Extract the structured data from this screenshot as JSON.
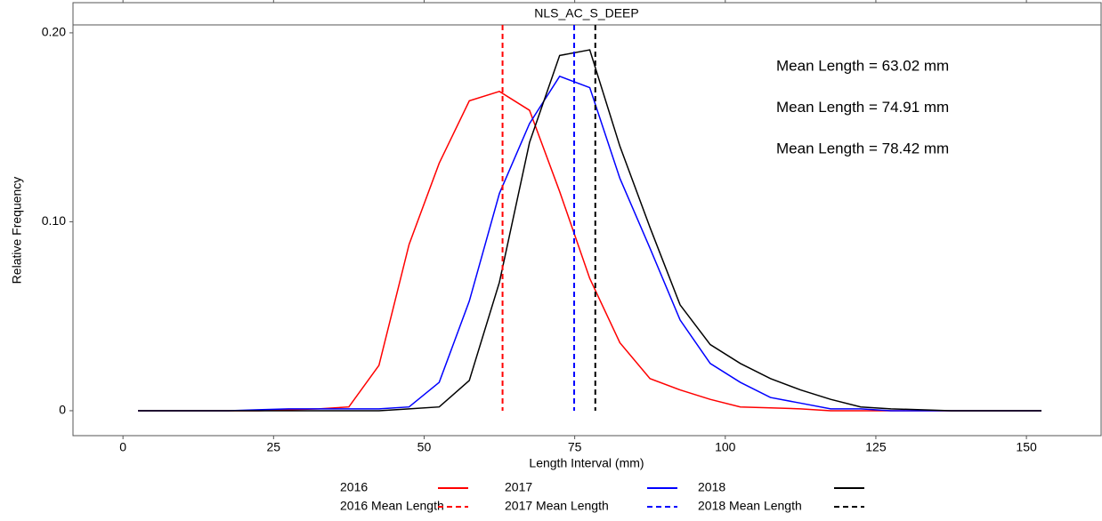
{
  "chart_data": {
    "type": "line",
    "title": "NLS_AC_S_DEEP",
    "x_label": "Length Interval (mm)",
    "y_label": "Relative Frequency",
    "x": [
      2.5,
      7.5,
      12.5,
      17.5,
      22.5,
      27.5,
      32.5,
      37.5,
      42.5,
      47.5,
      52.5,
      57.5,
      62.5,
      67.5,
      72.5,
      77.5,
      82.5,
      87.5,
      92.5,
      97.5,
      102.5,
      107.5,
      112.5,
      117.5,
      122.5,
      127.5,
      132.5,
      137.5,
      142.5,
      147.5,
      152.5
    ],
    "series": [
      {
        "name": "2016",
        "color": "#ff0000",
        "values": [
          0,
          0,
          0,
          0,
          0,
          0.0005,
          0.001,
          0.002,
          0.024,
          0.088,
          0.131,
          0.164,
          0.169,
          0.159,
          0.116,
          0.07,
          0.036,
          0.017,
          0.011,
          0.006,
          0.002,
          0.0015,
          0.001,
          0,
          0,
          0,
          0,
          0,
          0,
          0,
          0
        ]
      },
      {
        "name": "2017",
        "color": "#0000ff",
        "values": [
          0,
          0,
          0,
          0,
          0.0005,
          0.001,
          0.001,
          0.001,
          0.001,
          0.002,
          0.015,
          0.058,
          0.115,
          0.152,
          0.177,
          0.171,
          0.123,
          0.086,
          0.048,
          0.025,
          0.015,
          0.007,
          0.004,
          0.001,
          0.001,
          0,
          0,
          0,
          0,
          0,
          0
        ]
      },
      {
        "name": "2018",
        "color": "#000000",
        "values": [
          0,
          0,
          0,
          0,
          0,
          0,
          0,
          0,
          0,
          0.001,
          0.002,
          0.016,
          0.068,
          0.142,
          0.188,
          0.191,
          0.14,
          0.097,
          0.056,
          0.035,
          0.025,
          0.017,
          0.011,
          0.006,
          0.002,
          0.001,
          0.0005,
          0,
          0,
          0,
          0
        ]
      }
    ],
    "mean_lines": [
      {
        "name": "2016 Mean Length",
        "color": "#ff0000",
        "value": 63.02
      },
      {
        "name": "2017 Mean Length",
        "color": "#0000ff",
        "value": 74.91
      },
      {
        "name": "2018 Mean Length",
        "color": "#000000",
        "value": 78.42
      }
    ],
    "annotations": [
      {
        "text": "Mean Length = 63.02 mm",
        "color": "#ff0000"
      },
      {
        "text": "Mean Length = 74.91 mm",
        "color": "#0000ff"
      },
      {
        "text": "Mean Length = 78.42 mm",
        "color": "#000000"
      }
    ],
    "xlim": [
      -8.3,
      162.4
    ],
    "ylim": [
      -0.0132,
      0.2042
    ],
    "xticks": [
      0,
      25,
      50,
      75,
      100,
      125,
      150
    ],
    "yticks": [
      0,
      {
        "value": 0.1,
        "label": "0.10"
      },
      {
        "value": 0.2,
        "label": "0.20"
      }
    ]
  }
}
